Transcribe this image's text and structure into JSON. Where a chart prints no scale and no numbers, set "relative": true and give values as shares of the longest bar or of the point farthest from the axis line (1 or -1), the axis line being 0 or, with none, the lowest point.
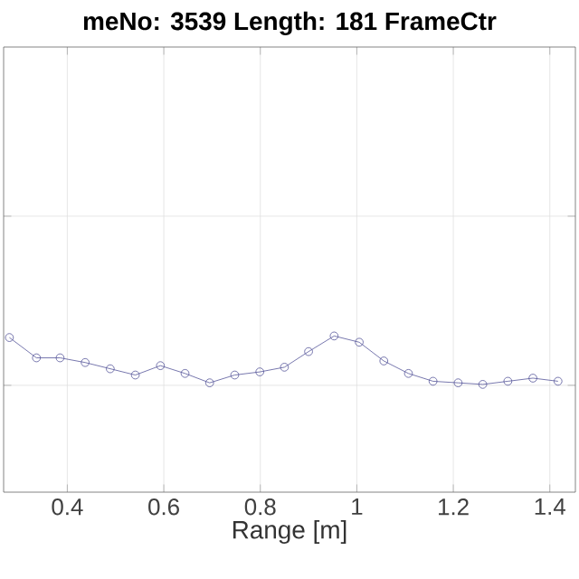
{
  "chart_data": {
    "type": "line",
    "title": "meNo: 3539   Length: 181   FrameCtr",
    "xlabel": "Range [m]",
    "relative": true,
    "x": [
      0.28,
      0.336,
      0.385,
      0.437,
      0.489,
      0.541,
      0.593,
      0.644,
      0.695,
      0.747,
      0.799,
      0.85,
      0.9,
      0.953,
      1.005,
      1.056,
      1.107,
      1.158,
      1.21,
      1.261,
      1.313,
      1.365,
      1.417
    ],
    "series": [
      {
        "color": "#555599",
        "values": [
          0.99,
          0.86,
          0.86,
          0.83,
          0.79,
          0.75,
          0.81,
          0.76,
          0.7,
          0.75,
          0.77,
          0.8,
          0.9,
          1.0,
          0.96,
          0.84,
          0.76,
          0.71,
          0.7,
          0.69,
          0.71,
          0.73,
          0.71
        ]
      }
    ],
    "xlim": [
      0.268,
      1.453
    ],
    "xticks": [
      0.4,
      0.6,
      0.8,
      1,
      1.2,
      1.4
    ],
    "grid": true,
    "marker": "circle",
    "line_style": "solid"
  }
}
